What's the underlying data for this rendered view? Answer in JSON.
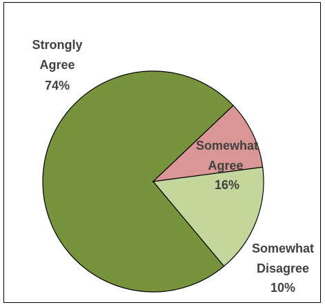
{
  "chart_data": {
    "type": "pie",
    "title": "",
    "legend": "none",
    "slices": [
      {
        "label": "Strongly Agree",
        "label_lines": [
          "Strongly",
          "Agree"
        ],
        "value": 74,
        "value_label": "74%",
        "color": "#77933c"
      },
      {
        "label": "Somewhat Agree",
        "label_lines": [
          "Somewhat",
          "Agree"
        ],
        "value": 16,
        "value_label": "16%",
        "color": "#c3d69b"
      },
      {
        "label": "Somewhat Disagree",
        "label_lines": [
          "Somewhat",
          "Disagree"
        ],
        "value": 10,
        "value_label": "10%",
        "color": "#d99694"
      }
    ],
    "border_color": "#ffffff",
    "label_color": "#404040"
  }
}
